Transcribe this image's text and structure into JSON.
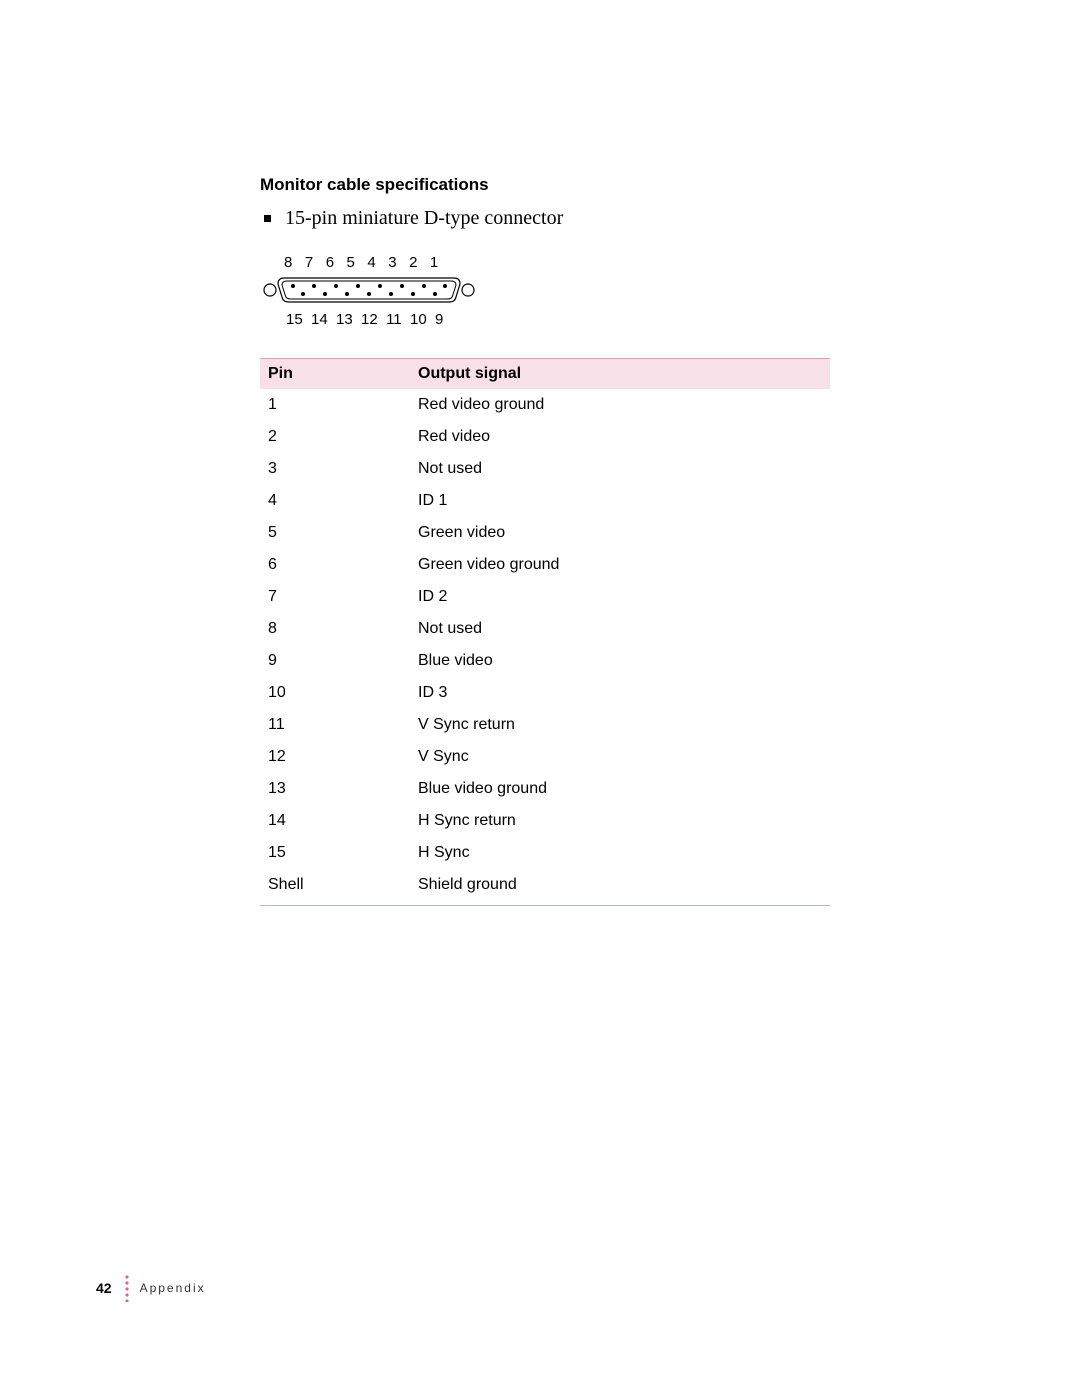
{
  "colors": {
    "header_bg": "#f8e0e8",
    "rule": "#d8a8b8",
    "footer_dot": "#d46a8a",
    "text": "#000000",
    "bg": "#ffffff"
  },
  "heading": "Monitor cable specifications",
  "bullet": "15-pin miniature D-type connector",
  "connector": {
    "top_labels": "8   7   6   5   4   3   2   1",
    "bottom_labels": "15  14  13  12  11  10  9"
  },
  "table": {
    "columns": [
      "Pin",
      "Output signal"
    ],
    "rows": [
      [
        "1",
        "Red video ground"
      ],
      [
        "2",
        "Red video"
      ],
      [
        "3",
        "Not used"
      ],
      [
        "4",
        "ID 1"
      ],
      [
        "5",
        "Green video"
      ],
      [
        "6",
        "Green video ground"
      ],
      [
        "7",
        "ID 2"
      ],
      [
        "8",
        "Not used"
      ],
      [
        "9",
        "Blue video"
      ],
      [
        "10",
        "ID 3"
      ],
      [
        "11",
        "V Sync return"
      ],
      [
        "12",
        "V Sync"
      ],
      [
        "13",
        "Blue video ground"
      ],
      [
        "14",
        "H Sync return"
      ],
      [
        "15",
        "H Sync"
      ],
      [
        "Shell",
        "Shield ground"
      ]
    ]
  },
  "footer": {
    "page_number": "42",
    "label": "Appendix"
  }
}
